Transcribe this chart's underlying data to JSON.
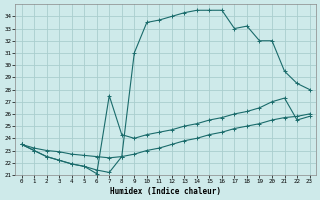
{
  "xlabel": "Humidex (Indice chaleur)",
  "bg_color": "#ceeaea",
  "grid_color": "#aacece",
  "line_color": "#1a6b6b",
  "xlim": [
    -0.5,
    23.5
  ],
  "ylim": [
    21,
    35
  ],
  "xticks": [
    0,
    1,
    2,
    3,
    4,
    5,
    6,
    7,
    8,
    9,
    10,
    11,
    12,
    13,
    14,
    15,
    16,
    17,
    18,
    19,
    20,
    21,
    22,
    23
  ],
  "yticks": [
    21,
    22,
    23,
    24,
    25,
    26,
    27,
    28,
    29,
    30,
    31,
    32,
    33,
    34
  ],
  "curve1_x": [
    0,
    1,
    2,
    3,
    4,
    5,
    6,
    7,
    8,
    9,
    10,
    11,
    12,
    13,
    14,
    15,
    16,
    17,
    18,
    19,
    20,
    21,
    22,
    23
  ],
  "curve1_y": [
    23.5,
    23.0,
    22.5,
    22.2,
    21.9,
    21.7,
    21.4,
    21.2,
    22.5,
    31.0,
    33.5,
    33.7,
    34.0,
    34.3,
    34.5,
    34.5,
    34.5,
    33.0,
    33.2,
    32.0,
    32.0,
    29.5,
    28.5,
    28.0
  ],
  "curve2_x": [
    0,
    1,
    2,
    3,
    4,
    5,
    6,
    7,
    8,
    9,
    10,
    11,
    12,
    13,
    14,
    15,
    16,
    17,
    18,
    19,
    20,
    21,
    22,
    23
  ],
  "curve2_y": [
    23.5,
    23.2,
    23.0,
    22.9,
    22.7,
    22.6,
    22.5,
    22.4,
    22.5,
    22.7,
    23.0,
    23.2,
    23.5,
    23.8,
    24.0,
    24.3,
    24.5,
    24.8,
    25.0,
    25.2,
    25.5,
    25.7,
    25.8,
    26.0
  ],
  "curve3_x": [
    0,
    1,
    2,
    3,
    4,
    5,
    6,
    7,
    8,
    9,
    10,
    11,
    12,
    13,
    14,
    15,
    16,
    17,
    18,
    19,
    20,
    21,
    22,
    23
  ],
  "curve3_y": [
    23.5,
    23.0,
    22.5,
    22.2,
    21.9,
    21.7,
    21.1,
    27.5,
    24.3,
    24.0,
    24.3,
    24.5,
    24.7,
    25.0,
    25.2,
    25.5,
    25.7,
    26.0,
    26.2,
    26.5,
    27.0,
    27.3,
    25.5,
    25.8
  ]
}
